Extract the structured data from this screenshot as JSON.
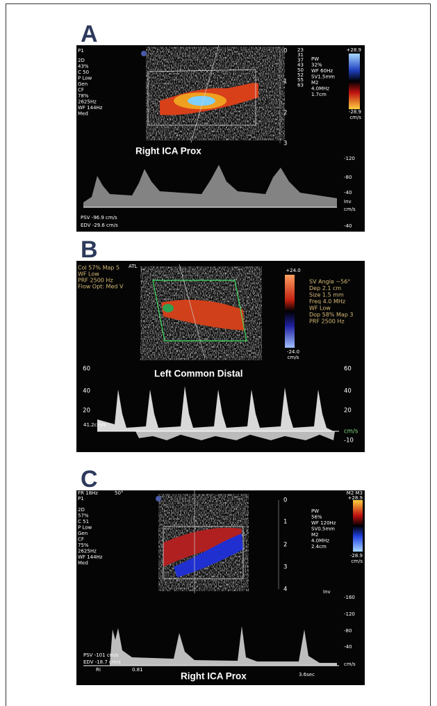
{
  "panels": [
    {
      "label": "A",
      "left_text": [
        "P1",
        "2D",
        "43%",
        "C 50",
        "P Low",
        "Gen",
        "CF",
        "78%",
        "2625Hz",
        "WF 144Hz",
        "Med"
      ],
      "depth_scale": [
        "0",
        "1",
        "2",
        "3"
      ],
      "small_column": [
        "23",
        "31",
        "37",
        "43",
        "50",
        "52",
        "55",
        "63"
      ],
      "right_text": [
        "PW",
        "32%",
        "WF 60Hz",
        "SV1.5mm",
        "M2",
        "4.0MHz",
        "1.7cm"
      ],
      "color_bar": [
        "+28.9",
        "-28.9",
        "cm/s"
      ],
      "vessel_label": "Right ICA Prox",
      "velocity_scale": [
        "-120",
        "-80",
        "-40",
        "Inv",
        "cm/s",
        "-40"
      ],
      "measurements": [
        "PSV  -96.9 cm/s",
        "EDV  -29.6 cm/s"
      ]
    },
    {
      "label": "B",
      "left_text": [
        "Col 57%  Map 5",
        "WF Low",
        "PRF 2500  Hz",
        "Flow Opt: Med V"
      ],
      "brand": "ATL",
      "color_bar": [
        "+24.0",
        "-24.0",
        "cm/s"
      ],
      "right_text": [
        "SV Angle −56°",
        "Dep 2.1  cm",
        "Size 1.5  mm",
        "Freq 4.0  MHz",
        "WF Low",
        "Dop 58%  Map 3",
        "PRF 2500  Hz"
      ],
      "vessel_label": "Left Common Distal",
      "left_scale": [
        "60",
        "40",
        "20"
      ],
      "baseline_label": "41.2cm/s",
      "right_scale": [
        "60",
        "40",
        "20",
        "cm/s",
        "-10"
      ]
    },
    {
      "label": "C",
      "header": [
        "FR 18Hz",
        "50°",
        "P1"
      ],
      "left_text": [
        "2D",
        "57%",
        "C 51",
        "P Low",
        "Gen",
        "CF",
        "75%",
        "2625Hz",
        "WF 144Hz",
        "Med"
      ],
      "depth_scale": [
        "0",
        "1",
        "2",
        "3",
        "4"
      ],
      "right_text": [
        "PW",
        "56%",
        "WF 120Hz",
        "SV0.5mm",
        "M2",
        "4.0MHz",
        "2.4cm"
      ],
      "color_bar": [
        "M2 M3",
        "+28.9",
        "-28.9",
        "cm/s"
      ],
      "inv": "Inv",
      "velocity_scale": [
        "-160",
        "-120",
        "-80",
        "-40",
        "cm/s"
      ],
      "measurements": [
        "PSV  -101 cm/s",
        "EDV  -18.7 cm/s",
        "RI",
        "0.81"
      ],
      "vessel_label": "Right ICA Prox",
      "time_label": "3.6sec"
    }
  ]
}
